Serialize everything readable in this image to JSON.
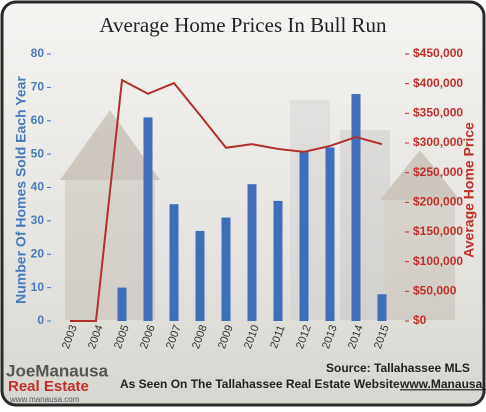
{
  "chart_data": {
    "type": "bar-line",
    "title": "Average Home Prices In Bull Run",
    "ylabel": "Number Of Homes Sold Each Year",
    "y2label": "Average Home Price",
    "source": "Source: Tallahassee MLS",
    "footer_text": "As Seen On The Tallahassee Real Estate Website",
    "footer_link": "www.Manausa.com",
    "logo": [
      "JoeManausa",
      "Real Estate",
      "www.manausa.com"
    ],
    "categories": [
      "2003",
      "2004",
      "2005",
      "2006",
      "2007",
      "2008",
      "2009",
      "2010",
      "2011",
      "2012",
      "2013",
      "2014",
      "2015"
    ],
    "series": [
      {
        "type": "bar",
        "color": "#3f6fba",
        "values": [
          0,
          0,
          10,
          61,
          35,
          27,
          31,
          41,
          36,
          51,
          52,
          68,
          8
        ]
      },
      {
        "type": "line",
        "axis": "y2",
        "color": "#b2302c",
        "values": [
          0,
          0,
          406000,
          383000,
          401000,
          347000,
          292000,
          298000,
          290000,
          285000,
          295000,
          310000,
          298000
        ]
      }
    ],
    "ylim": [
      0,
      80
    ],
    "yticks": [
      0,
      10,
      20,
      30,
      40,
      50,
      60,
      70,
      80
    ],
    "y2lim": [
      0,
      450000
    ],
    "y2ticks": [
      {
        "value": 0,
        "label": "$0"
      },
      {
        "value": 50000,
        "label": "$50,000"
      },
      {
        "value": 100000,
        "label": "$100,000"
      },
      {
        "value": 150000,
        "label": "$150,000"
      },
      {
        "value": 200000,
        "label": "$200,000"
      },
      {
        "value": 250000,
        "label": "$250,000"
      },
      {
        "value": 300000,
        "label": "$300,000"
      },
      {
        "value": 350000,
        "label": "$350,000"
      },
      {
        "value": 400000,
        "label": "$400,000"
      },
      {
        "value": 450000,
        "label": "$450,000"
      }
    ]
  }
}
